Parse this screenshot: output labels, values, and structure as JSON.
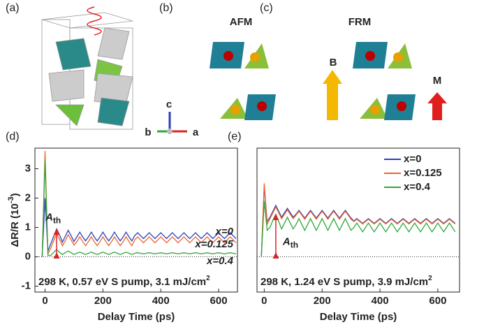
{
  "figure": {
    "panel_a": "(a)",
    "panel_b": "(b)",
    "panel_c": "(c)",
    "afm": "AFM",
    "frm": "FRM",
    "field": "B",
    "moment": "M",
    "axis_c": "c",
    "axis_b": "b",
    "axis_a": "a"
  },
  "chart_data": [
    {
      "type": "line",
      "panel_label": "(d)",
      "x_label": "Delay Time (ps)",
      "y_label": "ΔR/R (10",
      "y_label_sup": "-3",
      "y_label_end": ")",
      "note": "298 K, 0.57 eV S pump, 3.1 mJ/cm",
      "note_sup": "2",
      "annotation": "A",
      "annotation_sub": "th",
      "legend": "inline",
      "xlim": [
        -35,
        665
      ],
      "xticks": [
        0,
        200,
        400,
        600
      ],
      "ylim": [
        -1.2,
        3.7
      ],
      "yticks": [
        -1,
        0,
        1,
        2,
        3
      ],
      "x": [
        -10,
        0,
        10,
        20,
        30,
        40,
        50,
        60,
        70,
        80,
        90,
        100,
        110,
        120,
        130,
        140,
        150,
        160,
        170,
        180,
        190,
        200,
        210,
        220,
        230,
        240,
        250,
        260,
        270,
        280,
        290,
        300,
        310,
        320,
        330,
        340,
        350,
        360,
        370,
        380,
        390,
        400,
        410,
        420,
        430,
        440,
        450,
        460,
        470,
        480,
        490,
        500,
        510,
        520,
        530,
        540,
        550,
        560,
        570,
        580,
        590,
        600,
        610,
        620,
        630,
        640,
        650,
        660
      ],
      "series": [
        {
          "name": "x=0",
          "color": "#2b3fb5",
          "values": [
            0,
            2.0,
            0.2,
            0.45,
            0.7,
            0.95,
            0.75,
            0.5,
            0.7,
            0.9,
            0.72,
            0.52,
            0.68,
            0.84,
            0.68,
            0.54,
            0.68,
            0.84,
            0.68,
            0.54,
            0.68,
            0.84,
            0.68,
            0.54,
            0.68,
            0.84,
            0.68,
            0.54,
            0.68,
            0.84,
            0.68,
            0.54,
            0.72,
            0.82,
            0.72,
            0.62,
            0.72,
            0.82,
            0.72,
            0.62,
            0.72,
            0.82,
            0.72,
            0.62,
            0.72,
            0.82,
            0.72,
            0.62,
            0.72,
            0.82,
            0.72,
            0.62,
            0.72,
            0.82,
            0.72,
            0.62,
            0.72,
            0.82,
            0.72,
            0.62,
            0.72,
            0.82,
            0.72,
            0.62,
            0.72,
            0.82,
            0.72,
            0.62
          ]
        },
        {
          "name": "x=0.125",
          "color": "#f0622b",
          "values": [
            0,
            3.6,
            0.1,
            0.3,
            0.55,
            0.8,
            0.6,
            0.38,
            0.55,
            0.75,
            0.58,
            0.4,
            0.52,
            0.68,
            0.52,
            0.38,
            0.52,
            0.68,
            0.52,
            0.38,
            0.52,
            0.68,
            0.52,
            0.38,
            0.52,
            0.68,
            0.52,
            0.38,
            0.52,
            0.68,
            0.52,
            0.38,
            0.58,
            0.68,
            0.58,
            0.48,
            0.58,
            0.68,
            0.58,
            0.48,
            0.58,
            0.68,
            0.58,
            0.48,
            0.58,
            0.68,
            0.58,
            0.48,
            0.58,
            0.68,
            0.58,
            0.48,
            0.58,
            0.68,
            0.58,
            0.48,
            0.58,
            0.68,
            0.58,
            0.48,
            0.58,
            0.68,
            0.58,
            0.48,
            0.58,
            0.68,
            0.58,
            0.48
          ]
        },
        {
          "name": "x=0.4",
          "color": "#2fa83a",
          "values": [
            0,
            3.3,
            0.05,
            0.05,
            0.15,
            0.25,
            0.15,
            0.08,
            0.14,
            0.2,
            0.14,
            0.08,
            0.12,
            0.16,
            0.12,
            0.08,
            0.12,
            0.16,
            0.12,
            0.08,
            0.12,
            0.16,
            0.12,
            0.08,
            0.12,
            0.16,
            0.12,
            0.08,
            0.12,
            0.16,
            0.12,
            0.08,
            0.12,
            0.14,
            0.12,
            0.1,
            0.12,
            0.14,
            0.12,
            0.1,
            0.12,
            0.14,
            0.12,
            0.1,
            0.12,
            0.14,
            0.12,
            0.1,
            0.12,
            0.14,
            0.12,
            0.1,
            0.12,
            0.14,
            0.12,
            0.1,
            0.12,
            0.14,
            0.12,
            0.1,
            0.12,
            0.14,
            0.12,
            0.1,
            0.12,
            0.14,
            0.12,
            0.1
          ]
        }
      ]
    },
    {
      "type": "line",
      "panel_label": "(e)",
      "x_label": "Delay Time (ps)",
      "note": "298 K, 1.24 eV S pump, 3.9 mJ/cm",
      "note_sup": "2",
      "annotation": "A",
      "annotation_sub": "th",
      "legend": "upper right",
      "xlim": [
        -25,
        675
      ],
      "xticks": [
        0,
        200,
        400,
        600
      ],
      "ylim": [
        -1.2,
        3.7
      ],
      "x": [
        -10,
        0,
        10,
        20,
        30,
        40,
        50,
        60,
        70,
        80,
        90,
        100,
        110,
        120,
        130,
        140,
        150,
        160,
        170,
        180,
        190,
        200,
        210,
        220,
        230,
        240,
        250,
        260,
        270,
        280,
        290,
        300,
        310,
        320,
        330,
        340,
        350,
        360,
        370,
        380,
        390,
        400,
        410,
        420,
        430,
        440,
        450,
        460,
        470,
        480,
        490,
        500,
        510,
        520,
        530,
        540,
        550,
        560,
        570,
        580,
        590,
        600,
        610,
        620,
        630,
        640,
        650,
        660
      ],
      "series": [
        {
          "name": "x=0",
          "color": "#2b3fb5",
          "values": [
            0,
            2.4,
            1.2,
            1.35,
            1.55,
            1.75,
            1.55,
            1.35,
            1.5,
            1.65,
            1.5,
            1.35,
            1.45,
            1.58,
            1.45,
            1.32,
            1.45,
            1.58,
            1.45,
            1.32,
            1.45,
            1.58,
            1.45,
            1.32,
            1.45,
            1.58,
            1.45,
            1.32,
            1.45,
            1.58,
            1.45,
            1.32,
            1.22,
            1.3,
            1.22,
            1.14,
            1.22,
            1.3,
            1.22,
            1.14,
            1.22,
            1.3,
            1.22,
            1.14,
            1.22,
            1.3,
            1.22,
            1.14,
            1.22,
            1.3,
            1.22,
            1.14,
            1.22,
            1.3,
            1.22,
            1.14,
            1.22,
            1.3,
            1.22,
            1.14,
            1.22,
            1.3,
            1.22,
            1.14,
            1.22,
            1.3,
            1.22,
            1.14
          ]
        },
        {
          "name": "x=0.125",
          "color": "#f0622b",
          "values": [
            0,
            2.5,
            1.1,
            1.3,
            1.5,
            1.7,
            1.5,
            1.3,
            1.45,
            1.6,
            1.45,
            1.3,
            1.42,
            1.55,
            1.42,
            1.28,
            1.42,
            1.55,
            1.42,
            1.28,
            1.42,
            1.55,
            1.42,
            1.28,
            1.42,
            1.55,
            1.42,
            1.28,
            1.42,
            1.55,
            1.42,
            1.28,
            1.2,
            1.28,
            1.2,
            1.12,
            1.2,
            1.28,
            1.2,
            1.12,
            1.2,
            1.28,
            1.2,
            1.12,
            1.2,
            1.28,
            1.2,
            1.12,
            1.2,
            1.28,
            1.2,
            1.12,
            1.2,
            1.28,
            1.2,
            1.12,
            1.2,
            1.28,
            1.2,
            1.12,
            1.2,
            1.28,
            1.2,
            1.12,
            1.2,
            1.28,
            1.2,
            1.12
          ]
        },
        {
          "name": "x=0.4",
          "color": "#2fa83a",
          "values": [
            0,
            1.9,
            0.9,
            1.0,
            1.25,
            1.45,
            1.2,
            0.95,
            1.15,
            1.35,
            1.15,
            0.95,
            1.1,
            1.3,
            1.1,
            0.9,
            1.1,
            1.3,
            1.1,
            0.9,
            1.1,
            1.3,
            1.1,
            0.9,
            1.1,
            1.3,
            1.1,
            0.9,
            1.1,
            1.3,
            1.1,
            0.9,
            1.0,
            1.15,
            1.0,
            0.85,
            1.0,
            1.15,
            1.0,
            0.85,
            1.0,
            1.15,
            1.0,
            0.85,
            1.0,
            1.15,
            1.0,
            0.85,
            1.0,
            1.15,
            1.0,
            0.85,
            1.0,
            1.15,
            1.0,
            0.85,
            1.0,
            1.15,
            1.0,
            0.85,
            1.0,
            1.15,
            1.0,
            0.85,
            1.0,
            1.15,
            1.0,
            0.85
          ]
        }
      ]
    }
  ]
}
